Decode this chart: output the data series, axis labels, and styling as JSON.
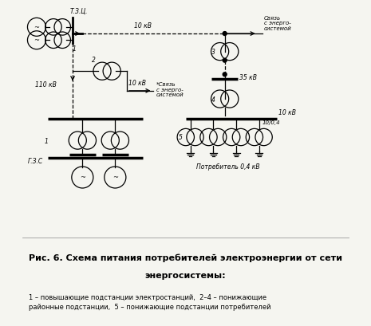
{
  "title_main": "Рис. 6. Схема питания потребителей электроэнергии от сети",
  "title_sub": "энергосистемы:",
  "legend_text": "1 – повышающие подстанции электростанций,  2–4 – понижающие\nрайонные подстанции,  5 – понижающие подстанции потребителей",
  "label_tzp": "Т.З.Ц.",
  "label_tzs": "Г.З.С",
  "label_10kv_top": "10 кВ",
  "label_110kv": "110 кВ",
  "label_10kv_mid": "10 кВ",
  "label_35kv": "35 кВ",
  "label_10kv_bot": "10 кВ",
  "label_energo1": "Связь\nс энерго-\nсистемой",
  "label_energo2": "*Связь\nс энерго-\nсистемой",
  "label_consumer": "Потребитель 0,4 кВ",
  "label_1": "1",
  "label_2": "2",
  "label_3": "3",
  "label_4": "4",
  "label_5": "5",
  "label_04kv": "10/0,4",
  "bg_color": "#f5f5f0",
  "line_color": "#000000",
  "fig_width": 4.65,
  "fig_height": 4.1,
  "dpi": 100
}
